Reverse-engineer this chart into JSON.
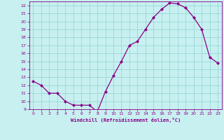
{
  "x": [
    0,
    1,
    2,
    3,
    4,
    5,
    6,
    7,
    8,
    9,
    10,
    11,
    12,
    13,
    14,
    15,
    16,
    17,
    18,
    19,
    20,
    21,
    22,
    23
  ],
  "y": [
    12.5,
    12.0,
    11.0,
    11.0,
    10.0,
    9.5,
    9.5,
    9.5,
    8.7,
    11.2,
    13.2,
    15.0,
    17.0,
    17.5,
    19.0,
    20.5,
    21.5,
    22.3,
    22.2,
    21.7,
    20.5,
    19.0,
    15.5,
    14.8
  ],
  "xlabel": "Windchill (Refroidissement éolien,°C)",
  "line_color": "#880088",
  "marker": "D",
  "marker_size": 2.0,
  "bg_color": "#c8f0f0",
  "grid_color": "#98d8d8",
  "text_color": "#880088",
  "ylim": [
    9,
    22.5
  ],
  "xlim": [
    -0.5,
    23.5
  ],
  "yticks": [
    9,
    10,
    11,
    12,
    13,
    14,
    15,
    16,
    17,
    18,
    19,
    20,
    21,
    22
  ],
  "xticks": [
    0,
    1,
    2,
    3,
    4,
    5,
    6,
    7,
    8,
    9,
    10,
    11,
    12,
    13,
    14,
    15,
    16,
    17,
    18,
    19,
    20,
    21,
    22,
    23
  ]
}
